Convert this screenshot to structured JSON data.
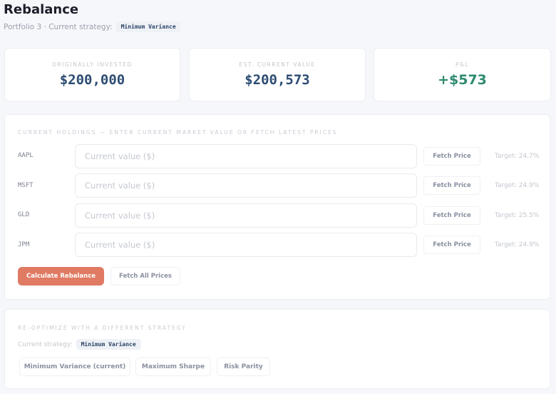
{
  "header": {
    "title": "Rebalance",
    "subtitle": "Portfolio 3 · Current strategy:",
    "strategy": "Minimum Variance"
  },
  "stats": [
    {
      "label": "ORIGINALLY INVESTED",
      "value": "$200,000"
    },
    {
      "label": "EST. CURRENT VALUE",
      "value": "$200,573"
    },
    {
      "label": "P&L",
      "value": "+$573"
    }
  ],
  "holdings": {
    "title": "CURRENT HOLDINGS — ENTER CURRENT MARKET VALUE OR FETCH LATEST PRICES",
    "placeholder": "Current value ($)",
    "fetch_label": "Fetch Price",
    "rows": [
      {
        "ticker": "AAPL",
        "target": "Target: 24.7%"
      },
      {
        "ticker": "MSFT",
        "target": "Target: 24.9%"
      },
      {
        "ticker": "GLD",
        "target": "Target: 25.5%"
      },
      {
        "ticker": "JPM",
        "target": "Target: 24.9%"
      }
    ],
    "calculate_label": "Calculate Rebalance",
    "fetch_all_label": "Fetch All Prices"
  },
  "reoptimize": {
    "title": "RE-OPTIMIZE WITH A DIFFERENT STRATEGY",
    "current_label": "Current strategy:",
    "current": "Minimum Variance",
    "options": [
      "Minimum Variance (current)",
      "Maximum Sharpe",
      "Risk Parity"
    ]
  },
  "colors": {
    "accent": "#e07a63",
    "positive": "#2e8a70",
    "value": "#2c4c72"
  }
}
